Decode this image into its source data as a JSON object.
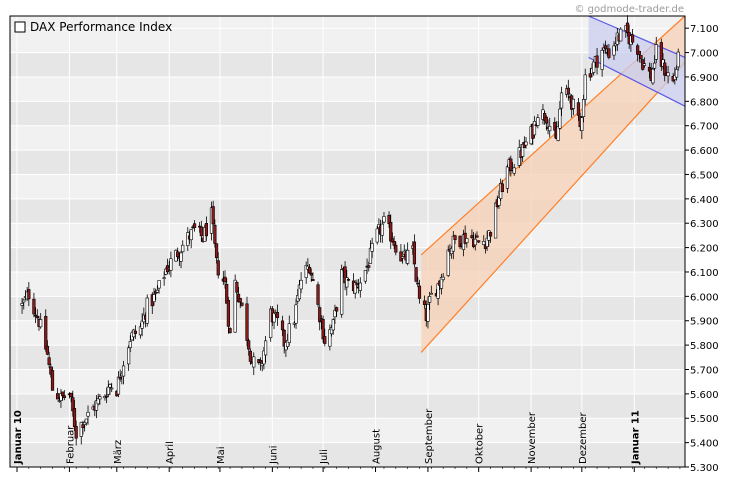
{
  "chart_data": {
    "type": "candlestick",
    "title": "DAX Performance Index",
    "watermark": "© godmode-trader.de",
    "ylim": [
      5300,
      7150
    ],
    "y_ticks": [
      5300,
      5400,
      5500,
      5600,
      5700,
      5800,
      5900,
      6000,
      6100,
      6200,
      6300,
      6400,
      6500,
      6600,
      6700,
      6800,
      6900,
      7000,
      7100
    ],
    "y_tick_labels": [
      "5.300",
      "5.400",
      "5.500",
      "5.600",
      "5.700",
      "5.800",
      "5.900",
      "6.000",
      "6.100",
      "6.200",
      "6.300",
      "6.400",
      "6.500",
      "6.600",
      "6.700",
      "6.800",
      "6.900",
      "7.000",
      "7.100"
    ],
    "x_period": [
      "2010-01-01",
      "2011-01-31"
    ],
    "x_months": [
      {
        "label": "Januar 10",
        "date": "2010-01-01",
        "bold": true
      },
      {
        "label": "Februar",
        "date": "2010-02-01",
        "bold": false
      },
      {
        "label": "März",
        "date": "2010-03-01",
        "bold": false
      },
      {
        "label": "April",
        "date": "2010-04-01",
        "bold": false
      },
      {
        "label": "Mai",
        "date": "2010-05-01",
        "bold": false
      },
      {
        "label": "Juni",
        "date": "2010-06-01",
        "bold": false
      },
      {
        "label": "Juli",
        "date": "2010-07-01",
        "bold": false
      },
      {
        "label": "August",
        "date": "2010-08-01",
        "bold": false
      },
      {
        "label": "September",
        "date": "2010-09-01",
        "bold": false
      },
      {
        "label": "Oktober",
        "date": "2010-10-01",
        "bold": false
      },
      {
        "label": "November",
        "date": "2010-11-01",
        "bold": false
      },
      {
        "label": "Dezember",
        "date": "2010-12-01",
        "bold": false
      },
      {
        "label": "Januar 11",
        "date": "2011-01-01",
        "bold": true
      }
    ],
    "close_path": [
      [
        "2010-01-04",
        5960
      ],
      [
        "2010-01-08",
        6010
      ],
      [
        "2010-01-14",
        5900
      ],
      [
        "2010-01-19",
        5760
      ],
      [
        "2010-01-22",
        5620
      ],
      [
        "2010-01-27",
        5580
      ],
      [
        "2010-02-01",
        5600
      ],
      [
        "2010-02-05",
        5440
      ],
      [
        "2010-02-09",
        5490
      ],
      [
        "2010-02-12",
        5510
      ],
      [
        "2010-02-17",
        5560
      ],
      [
        "2010-02-22",
        5600
      ],
      [
        "2010-02-25",
        5640
      ],
      [
        "2010-03-01",
        5620
      ],
      [
        "2010-03-04",
        5710
      ],
      [
        "2010-03-09",
        5830
      ],
      [
        "2010-03-15",
        5870
      ],
      [
        "2010-03-19",
        5960
      ],
      [
        "2010-03-24",
        6000
      ],
      [
        "2010-03-30",
        6110
      ],
      [
        "2010-04-06",
        6180
      ],
      [
        "2010-04-12",
        6240
      ],
      [
        "2010-04-16",
        6270
      ],
      [
        "2010-04-21",
        6240
      ],
      [
        "2010-04-26",
        6330
      ],
      [
        "2010-04-29",
        6130
      ],
      [
        "2010-05-04",
        6050
      ],
      [
        "2010-05-07",
        5840
      ],
      [
        "2010-05-10",
        6060
      ],
      [
        "2010-05-14",
        5950
      ],
      [
        "2010-05-20",
        5730
      ],
      [
        "2010-05-25",
        5700
      ],
      [
        "2010-05-31",
        5930
      ],
      [
        "2010-06-04",
        5890
      ],
      [
        "2010-06-08",
        5810
      ],
      [
        "2010-06-14",
        5910
      ],
      [
        "2010-06-18",
        6070
      ],
      [
        "2010-06-23",
        6130
      ],
      [
        "2010-06-28",
        5960
      ],
      [
        "2010-07-02",
        5820
      ],
      [
        "2010-07-07",
        5880
      ],
      [
        "2010-07-12",
        6090
      ],
      [
        "2010-07-16",
        6050
      ],
      [
        "2010-07-21",
        6040
      ],
      [
        "2010-07-27",
        6120
      ],
      [
        "2010-08-02",
        6250
      ],
      [
        "2010-08-06",
        6300
      ],
      [
        "2010-08-11",
        6240
      ],
      [
        "2010-08-17",
        6150
      ],
      [
        "2010-08-23",
        6180
      ],
      [
        "2010-08-27",
        5980
      ],
      [
        "2010-08-31",
        5920
      ],
      [
        "2010-09-03",
        6000
      ],
      [
        "2010-09-08",
        6060
      ],
      [
        "2010-09-13",
        6190
      ],
      [
        "2010-09-17",
        6230
      ],
      [
        "2010-09-22",
        6240
      ],
      [
        "2010-09-27",
        6240
      ],
      [
        "2010-10-01",
        6220
      ],
      [
        "2010-10-05",
        6230
      ],
      [
        "2010-10-08",
        6270
      ],
      [
        "2010-10-13",
        6410
      ],
      [
        "2010-10-18",
        6520
      ],
      [
        "2010-10-22",
        6550
      ],
      [
        "2010-10-27",
        6600
      ],
      [
        "2010-11-02",
        6680
      ],
      [
        "2010-11-05",
        6760
      ],
      [
        "2010-11-10",
        6740
      ],
      [
        "2010-11-16",
        6630
      ],
      [
        "2010-11-19",
        6830
      ],
      [
        "2010-11-24",
        6820
      ],
      [
        "2010-11-30",
        6690
      ],
      [
        "2010-12-03",
        6900
      ],
      [
        "2010-12-08",
        6950
      ],
      [
        "2010-12-13",
        7010
      ],
      [
        "2010-12-17",
        7000
      ],
      [
        "2010-12-22",
        7060
      ],
      [
        "2010-12-27",
        7080
      ],
      [
        "2011-01-03",
        7020
      ],
      [
        "2011-01-06",
        6960
      ],
      [
        "2011-01-11",
        6900
      ],
      [
        "2011-01-14",
        7000
      ],
      [
        "2011-01-19",
        6930
      ],
      [
        "2011-01-24",
        6880
      ],
      [
        "2011-01-27",
        6970
      ]
    ],
    "annotations": [
      {
        "type": "channel",
        "color": "#ff7f27",
        "fill": "#f6d0b4",
        "line1": [
          [
            "2010-08-28",
            6170
          ],
          [
            "2011-01-31",
            7150
          ]
        ],
        "line2": [
          [
            "2010-08-28",
            5770
          ],
          [
            "2011-01-31",
            6960
          ]
        ]
      },
      {
        "type": "channel",
        "color": "#5a5ae6",
        "fill": "#c9cdee",
        "line1": [
          [
            "2010-12-05",
            7150
          ],
          [
            "2011-01-31",
            6980
          ]
        ],
        "line2": [
          [
            "2010-12-05",
            6980
          ],
          [
            "2011-01-31",
            6780
          ]
        ]
      }
    ],
    "grid": true,
    "legend": "top-left"
  }
}
